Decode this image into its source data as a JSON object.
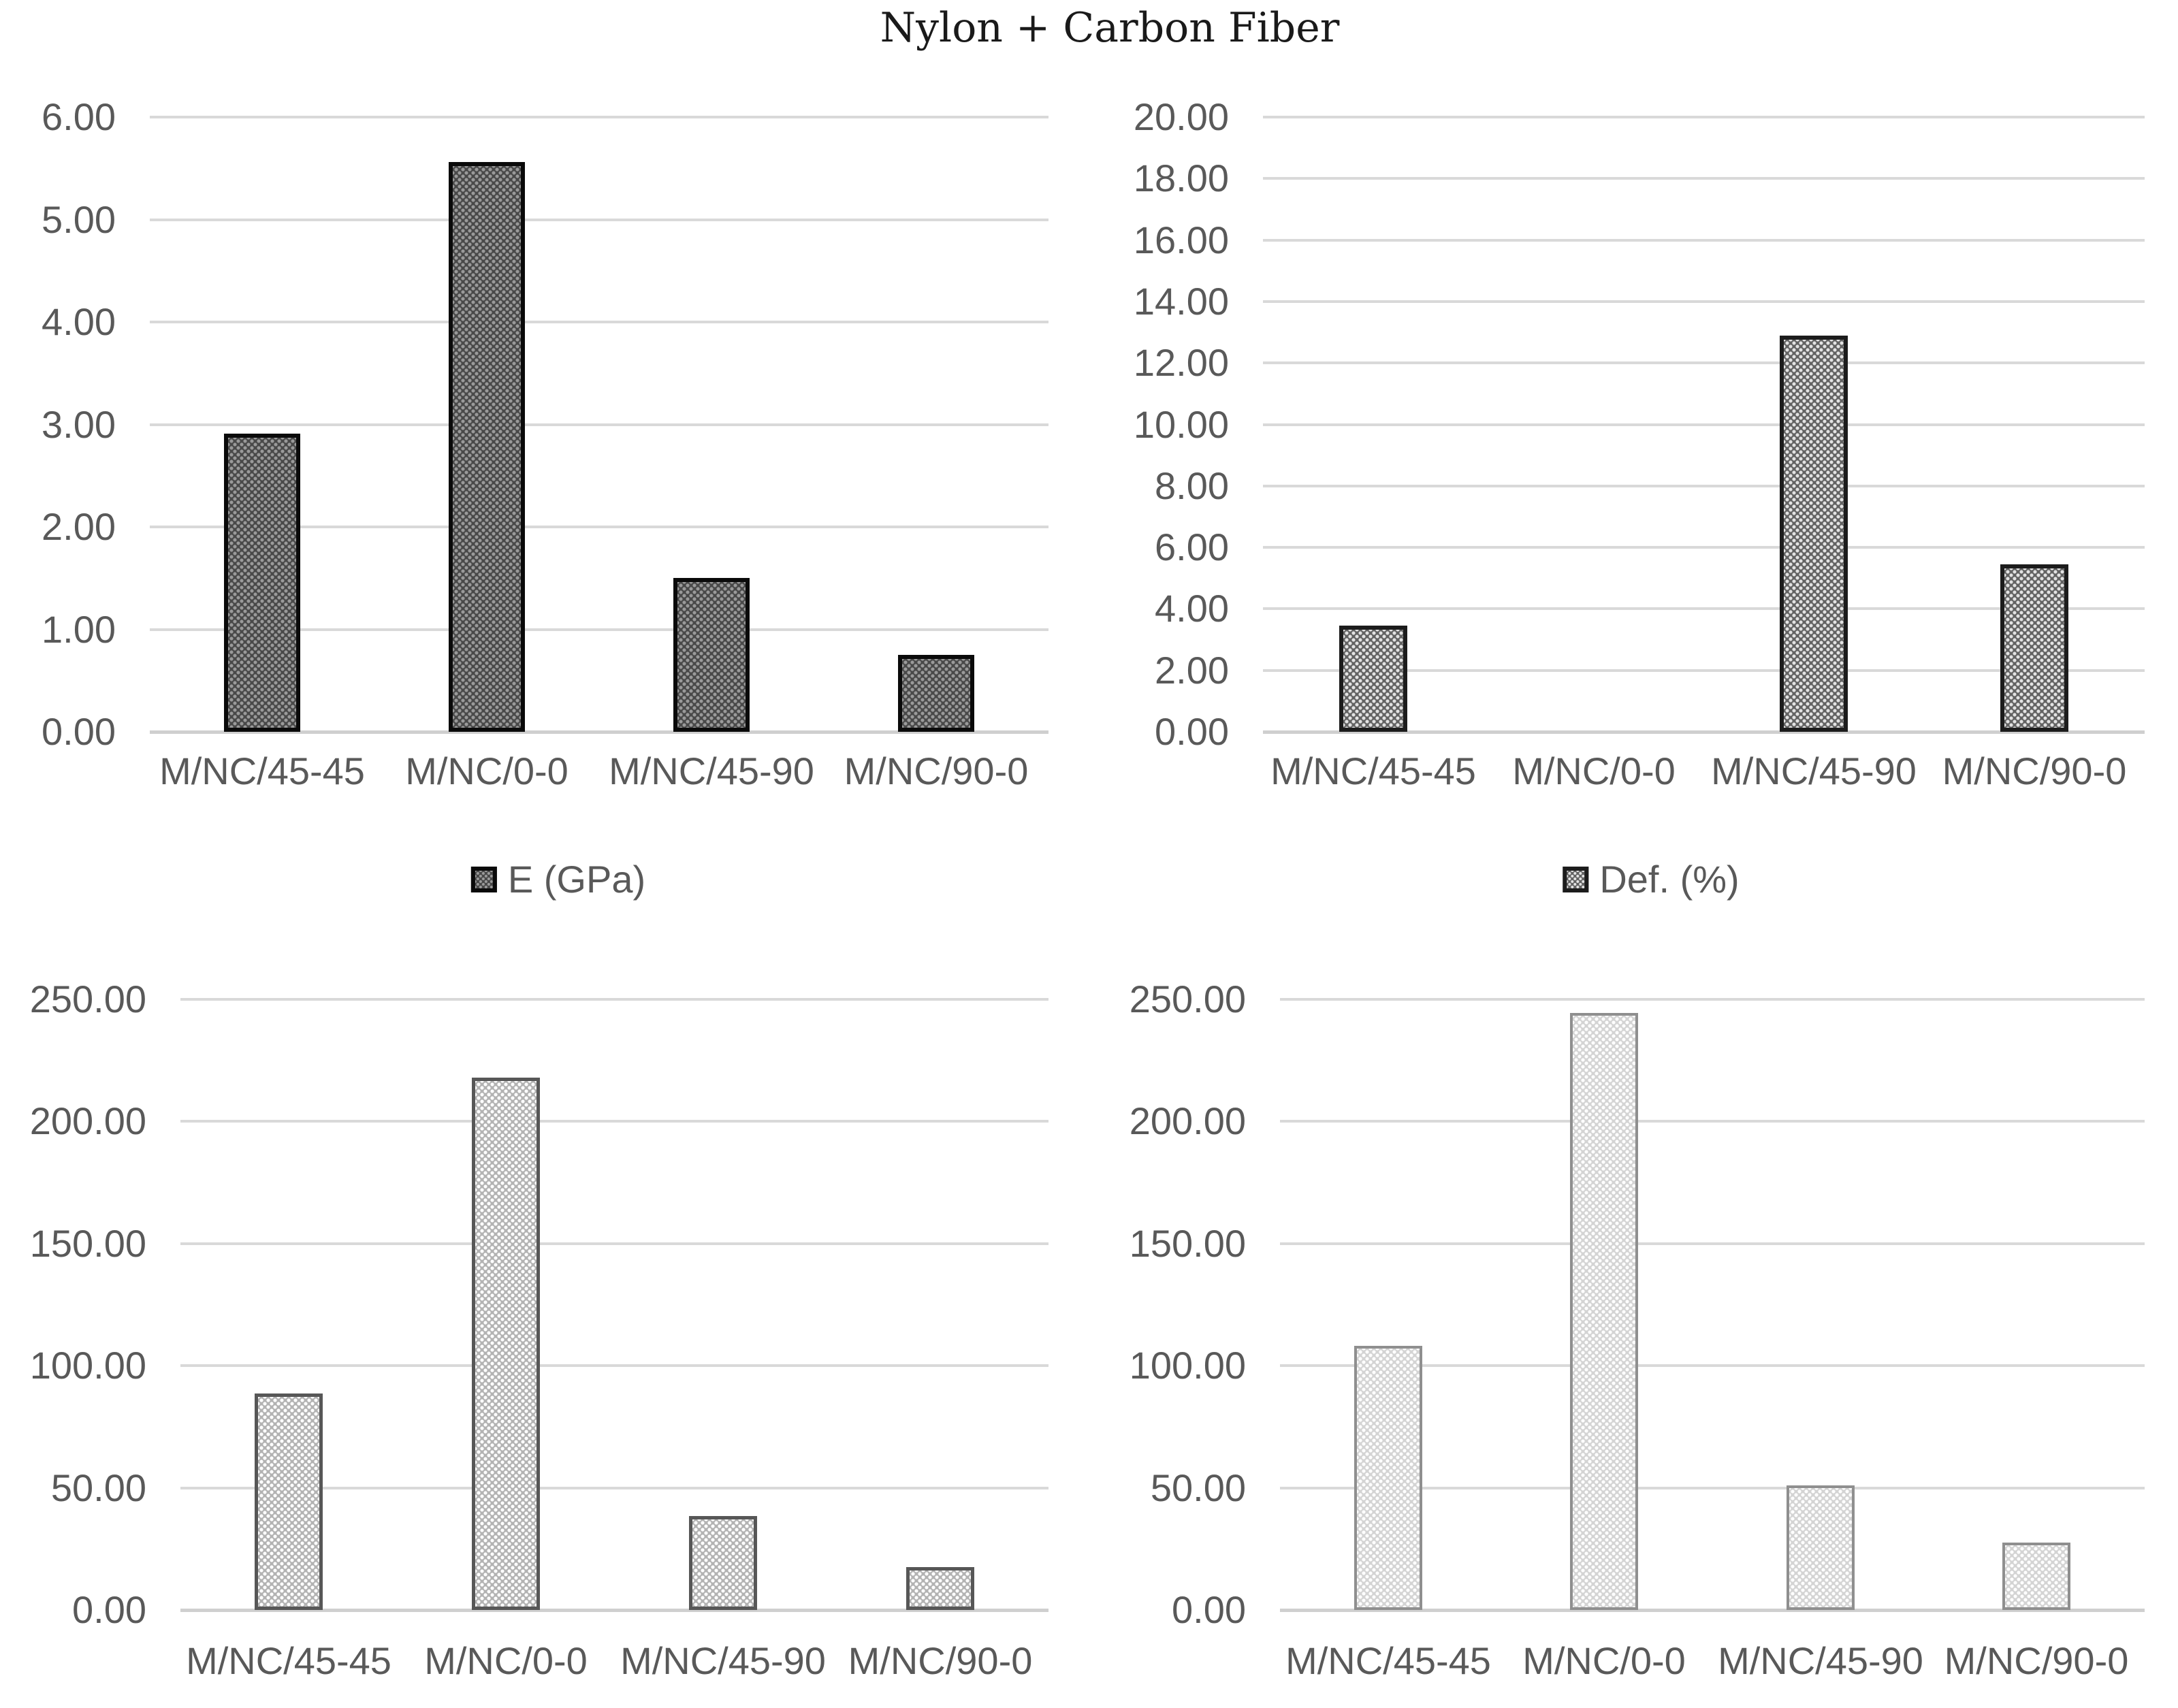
{
  "title": "Nylon + Carbon Fiber",
  "colors": {
    "background": "#ffffff",
    "gridline": "#d9d9d9",
    "axis_line": "#cfcfcf",
    "tick_text": "#595959",
    "label_text": "#595959",
    "legend_text": "#595959",
    "title_text": "#1a1a1a"
  },
  "categories": [
    "M/NC/45-45",
    "M/NC/0-0",
    "M/NC/45-90",
    "M/NC/90-0"
  ],
  "chart_data": [
    {
      "type": "bar",
      "panel": "top-left",
      "title": "",
      "xlabel": "",
      "ylabel": "",
      "legend": "E (GPa)",
      "legend_position": "bottom",
      "grid": true,
      "categories": [
        "M/NC/45-45",
        "M/NC/0-0",
        "M/NC/45-90",
        "M/NC/90-0"
      ],
      "values": [
        2.91,
        5.56,
        1.5,
        0.75
      ],
      "ylim": [
        0,
        6
      ],
      "ytick_step": 1,
      "yticks": [
        "6.00",
        "5.00",
        "4.00",
        "3.00",
        "2.00",
        "1.00",
        "0.00"
      ],
      "bar_style": {
        "fill_bg": "#494949",
        "fill_dot": "#9a9a9a",
        "border": "#0a0a0a",
        "border_px": 6
      }
    },
    {
      "type": "bar",
      "panel": "top-right",
      "title": "",
      "xlabel": "",
      "ylabel": "",
      "legend": "Def. (%)",
      "legend_position": "bottom",
      "grid": true,
      "categories": [
        "M/NC/45-45",
        "M/NC/0-0",
        "M/NC/45-90",
        "M/NC/90-0"
      ],
      "values": [
        3.45,
        0.0,
        12.88,
        5.45
      ],
      "ylim": [
        0,
        20
      ],
      "ytick_step": 2,
      "yticks": [
        "20.00",
        "18.00",
        "16.00",
        "14.00",
        "12.00",
        "10.00",
        "8.00",
        "6.00",
        "4.00",
        "2.00",
        "0.00"
      ],
      "bar_style": {
        "fill_bg": "#636363",
        "fill_dot": "#e3e3e3",
        "border": "#1c1c1c",
        "border_px": 6
      }
    },
    {
      "type": "bar",
      "panel": "bottom-left",
      "title": "",
      "xlabel": "",
      "ylabel": "",
      "legend": "",
      "legend_position": "none",
      "grid": true,
      "categories": [
        "M/NC/45-45",
        "M/NC/0-0",
        "M/NC/45-90",
        "M/NC/90-0"
      ],
      "values": [
        88.5,
        218.0,
        38.5,
        17.5
      ],
      "ylim": [
        0,
        250
      ],
      "ytick_step": 50,
      "yticks": [
        "250.00",
        "200.00",
        "150.00",
        "100.00",
        "50.00",
        "0.00"
      ],
      "bar_style": {
        "fill_bg": "#b3b3b3",
        "fill_dot": "#ffffff",
        "border": "#575757",
        "border_px": 5
      }
    },
    {
      "type": "bar",
      "panel": "bottom-right",
      "title": "",
      "xlabel": "",
      "ylabel": "",
      "legend": "",
      "legend_position": "none",
      "grid": true,
      "categories": [
        "M/NC/45-45",
        "M/NC/0-0",
        "M/NC/45-90",
        "M/NC/90-0"
      ],
      "values": [
        108.0,
        244.5,
        51.0,
        27.5
      ],
      "ylim": [
        0,
        250
      ],
      "ytick_step": 50,
      "yticks": [
        "250.00",
        "200.00",
        "150.00",
        "100.00",
        "50.00",
        "0.00"
      ],
      "bar_style": {
        "fill_bg": "#d4d4d4",
        "fill_dot": "#ffffff",
        "border": "#8f8f8f",
        "border_px": 4
      }
    }
  ]
}
